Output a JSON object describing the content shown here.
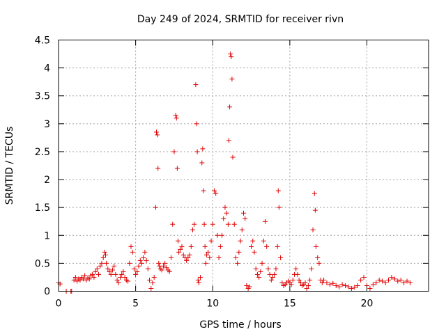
{
  "chart_data": {
    "type": "scatter",
    "title": "Day 249 of 2024, SRMTID for receiver rivn",
    "xlabel": "GPS time / hours",
    "ylabel": "SRMTID / TECUs",
    "xlim": [
      0,
      24
    ],
    "ylim": [
      0,
      4.5
    ],
    "xticks": [
      0,
      5,
      10,
      15,
      20
    ],
    "xtick_labels": [
      "0",
      "5",
      "10",
      "15",
      "20"
    ],
    "yticks": [
      0,
      0.5,
      1,
      1.5,
      2,
      2.5,
      3,
      3.5,
      4,
      4.5
    ],
    "ytick_labels": [
      "0",
      "0.5",
      "1",
      "1.5",
      "2",
      "2.5",
      "3",
      "3.5",
      "4",
      "4.5"
    ],
    "grid": true,
    "marker": "+",
    "color": "#e00000",
    "series": [
      {
        "name": "SRMTID",
        "x": [
          0.0,
          0.1,
          0.5,
          0.8,
          0.85,
          1.0,
          1.1,
          1.2,
          1.3,
          1.4,
          1.5,
          1.6,
          1.7,
          1.8,
          1.9,
          2.0,
          2.1,
          2.2,
          2.3,
          2.4,
          2.5,
          2.6,
          2.7,
          2.8,
          2.9,
          3.0,
          3.05,
          3.1,
          3.2,
          3.3,
          3.4,
          3.5,
          3.6,
          3.7,
          3.8,
          3.9,
          4.0,
          4.1,
          4.2,
          4.3,
          4.4,
          4.5,
          4.6,
          4.7,
          4.8,
          4.9,
          5.0,
          5.1,
          5.2,
          5.3,
          5.4,
          5.5,
          5.6,
          5.7,
          5.8,
          5.9,
          6.0,
          6.1,
          6.2,
          6.3,
          6.35,
          6.4,
          6.45,
          6.5,
          6.55,
          6.6,
          6.7,
          6.8,
          6.9,
          7.0,
          7.1,
          7.2,
          7.3,
          7.4,
          7.5,
          7.6,
          7.65,
          7.7,
          7.75,
          7.8,
          7.9,
          8.0,
          8.1,
          8.2,
          8.3,
          8.4,
          8.5,
          8.6,
          8.7,
          8.8,
          8.9,
          8.95,
          9.0,
          9.05,
          9.1,
          9.2,
          9.3,
          9.35,
          9.4,
          9.45,
          9.5,
          9.55,
          9.6,
          9.7,
          9.8,
          9.9,
          10.0,
          10.1,
          10.2,
          10.3,
          10.4,
          10.5,
          10.6,
          10.7,
          10.8,
          10.9,
          11.0,
          11.05,
          11.1,
          11.15,
          11.2,
          11.25,
          11.3,
          11.4,
          11.5,
          11.6,
          11.7,
          11.8,
          11.9,
          12.0,
          12.1,
          12.2,
          12.3,
          12.4,
          12.5,
          12.6,
          12.7,
          12.8,
          12.9,
          13.0,
          13.1,
          13.2,
          13.3,
          13.4,
          13.5,
          13.6,
          13.7,
          13.8,
          13.9,
          14.0,
          14.1,
          14.2,
          14.25,
          14.3,
          14.4,
          14.5,
          14.6,
          14.7,
          14.8,
          14.9,
          15.0,
          15.1,
          15.2,
          15.3,
          15.4,
          15.5,
          15.6,
          15.7,
          15.8,
          15.9,
          16.0,
          16.1,
          16.2,
          16.3,
          16.4,
          16.5,
          16.6,
          16.65,
          16.7,
          16.8,
          16.9,
          17.0,
          17.1,
          17.2,
          17.4,
          17.6,
          17.8,
          18.0,
          18.2,
          18.4,
          18.6,
          18.8,
          19.0,
          19.2,
          19.4,
          19.6,
          19.8,
          20.0,
          20.2,
          20.4,
          20.6,
          20.8,
          21.0,
          21.2,
          21.4,
          21.6,
          21.8,
          22.0,
          22.2,
          22.4,
          22.6,
          22.8
        ],
        "y": [
          0.15,
          0.13,
          0.0,
          0.0,
          0.0,
          0.2,
          0.25,
          0.18,
          0.22,
          0.2,
          0.25,
          0.22,
          0.28,
          0.2,
          0.24,
          0.22,
          0.28,
          0.3,
          0.25,
          0.35,
          0.4,
          0.3,
          0.45,
          0.5,
          0.6,
          0.7,
          0.65,
          0.5,
          0.4,
          0.35,
          0.3,
          0.38,
          0.45,
          0.3,
          0.2,
          0.15,
          0.25,
          0.3,
          0.35,
          0.25,
          0.2,
          0.18,
          0.5,
          0.8,
          0.7,
          0.4,
          0.3,
          0.35,
          0.45,
          0.55,
          0.5,
          0.6,
          0.7,
          0.55,
          0.4,
          0.2,
          0.05,
          0.15,
          0.25,
          1.5,
          2.85,
          2.8,
          2.2,
          0.5,
          0.45,
          0.4,
          0.38,
          0.45,
          0.5,
          0.42,
          0.38,
          0.35,
          0.6,
          1.2,
          2.5,
          3.15,
          3.1,
          2.2,
          0.9,
          0.7,
          0.75,
          0.8,
          0.65,
          0.6,
          0.55,
          0.6,
          0.65,
          0.8,
          1.1,
          1.2,
          3.7,
          3.0,
          2.5,
          0.2,
          0.15,
          0.25,
          2.3,
          2.55,
          1.8,
          1.2,
          0.8,
          0.5,
          0.65,
          0.7,
          0.6,
          0.9,
          1.2,
          1.8,
          1.75,
          1.0,
          0.6,
          0.8,
          1.0,
          1.3,
          1.5,
          1.4,
          1.2,
          2.7,
          3.3,
          4.25,
          4.2,
          3.8,
          2.4,
          1.2,
          0.6,
          0.5,
          0.7,
          0.9,
          1.1,
          1.4,
          1.3,
          0.1,
          0.05,
          0.08,
          0.8,
          0.9,
          0.7,
          0.4,
          0.3,
          0.25,
          0.35,
          0.5,
          0.9,
          1.25,
          0.8,
          0.4,
          0.3,
          0.2,
          0.25,
          0.3,
          0.4,
          0.8,
          1.8,
          1.5,
          0.6,
          0.15,
          0.1,
          0.12,
          0.15,
          0.18,
          0.15,
          0.12,
          0.2,
          0.3,
          0.4,
          0.3,
          0.2,
          0.15,
          0.1,
          0.12,
          0.15,
          0.05,
          0.1,
          0.2,
          0.4,
          1.1,
          1.75,
          1.45,
          0.8,
          0.6,
          0.5,
          0.2,
          0.15,
          0.2,
          0.15,
          0.12,
          0.14,
          0.1,
          0.08,
          0.12,
          0.1,
          0.08,
          0.05,
          0.07,
          0.1,
          0.2,
          0.25,
          0.1,
          0.05,
          0.12,
          0.15,
          0.2,
          0.18,
          0.15,
          0.2,
          0.25,
          0.22,
          0.18,
          0.2,
          0.15,
          0.18,
          0.15
        ]
      }
    ]
  }
}
